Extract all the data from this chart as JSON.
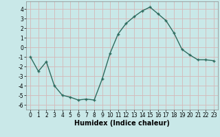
{
  "xlabel": "Humidex (Indice chaleur)",
  "x": [
    0,
    1,
    2,
    3,
    4,
    5,
    6,
    7,
    8,
    9,
    10,
    11,
    12,
    13,
    14,
    15,
    16,
    17,
    18,
    19,
    20,
    21,
    22,
    23
  ],
  "y": [
    -1.0,
    -2.5,
    -1.5,
    -4.0,
    -5.0,
    -5.2,
    -5.5,
    -5.4,
    -5.5,
    -3.3,
    -0.6,
    1.4,
    2.5,
    3.2,
    3.8,
    4.2,
    3.5,
    2.8,
    1.5,
    -0.2,
    -0.8,
    -1.3,
    -1.3,
    -1.4
  ],
  "line_color": "#2d6b5e",
  "marker": "+",
  "marker_size": 3.5,
  "line_width": 1.0,
  "bg_color": "#c9e8e8",
  "grid_color": "#d4b8b8",
  "ylim": [
    -6.5,
    4.8
  ],
  "xlim": [
    -0.5,
    23.5
  ],
  "yticks": [
    -6,
    -5,
    -4,
    -3,
    -2,
    -1,
    0,
    1,
    2,
    3,
    4
  ],
  "xticks": [
    0,
    1,
    2,
    3,
    4,
    5,
    6,
    7,
    8,
    9,
    10,
    11,
    12,
    13,
    14,
    15,
    16,
    17,
    18,
    19,
    20,
    21,
    22,
    23
  ],
  "tick_fontsize": 5.5,
  "xlabel_fontsize": 7
}
